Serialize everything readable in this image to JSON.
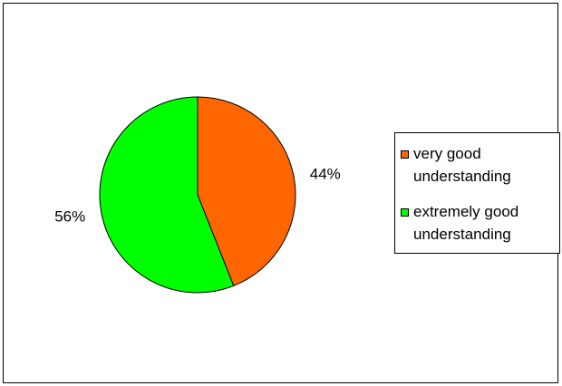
{
  "chart_data": {
    "type": "pie",
    "title": "",
    "slices": [
      {
        "label": "very good understanding",
        "value": 44,
        "display": "44%",
        "color": "#FF6600"
      },
      {
        "label": "extremely good understanding",
        "value": 56,
        "display": "56%",
        "color": "#00FF00"
      }
    ],
    "legend_position": "right",
    "start_angle_deg": 0,
    "direction": "clockwise"
  }
}
